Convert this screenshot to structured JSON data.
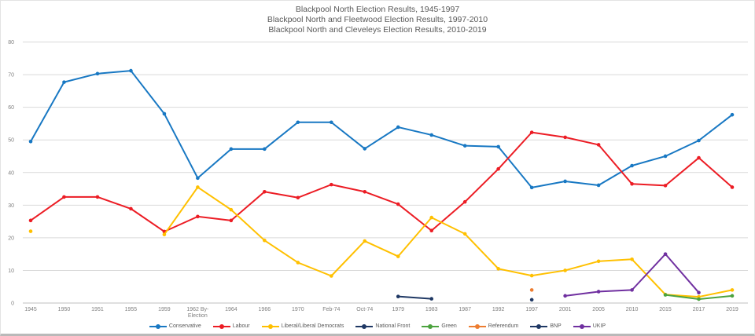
{
  "chart_data": {
    "type": "line",
    "title_lines": [
      "Blackpool North Election Results, 1945-1997",
      "Blackpool North and Fleetwood Election Results, 1997-2010",
      "Blackpool North and Cleveleys Election Results, 2010-2019"
    ],
    "xlabel": "",
    "ylabel": "",
    "ylim": [
      0,
      80
    ],
    "yticks": [
      0,
      10,
      20,
      30,
      40,
      50,
      60,
      70,
      80
    ],
    "grid": true,
    "legend_position": "bottom",
    "categories": [
      "1945",
      "1950",
      "1951",
      "1955",
      "1959",
      "1962 By-Election",
      "1964",
      "1966",
      "1970",
      "Feb-74",
      "Oct-74",
      "1979",
      "1983",
      "1987",
      "1992",
      "1997",
      "2001",
      "2005",
      "2010",
      "2015",
      "2017",
      "2019"
    ],
    "series": [
      {
        "name": "Conservative",
        "color": "#1878c3",
        "values": [
          49.5,
          67.7,
          70.3,
          71.2,
          58,
          38.3,
          47.2,
          47.2,
          55.4,
          55.4,
          47.3,
          53.9,
          51.5,
          48.2,
          47.9,
          35.4,
          37.3,
          36.1,
          42.1,
          45,
          49.8,
          57.7
        ]
      },
      {
        "name": "Labour",
        "color": "#ec1c24",
        "values": [
          25.3,
          32.5,
          32.5,
          28.9,
          21.9,
          26.5,
          25.3,
          34.1,
          32.3,
          36.3,
          34.1,
          30.3,
          22.2,
          31,
          41.1,
          52.3,
          50.8,
          48.5,
          36.5,
          36,
          44.5,
          35.5
        ]
      },
      {
        "name": "Liberal/Liberal Democrats",
        "color": "#ffc000",
        "values": [
          22,
          null,
          null,
          null,
          21,
          35.5,
          28.6,
          19.2,
          12.4,
          8.3,
          19,
          14.3,
          26.2,
          21.2,
          10.5,
          8.4,
          10,
          12.8,
          13.4,
          2.6,
          1.9,
          4
        ]
      },
      {
        "name": "National Front",
        "color": "#1f3864",
        "values": [
          null,
          null,
          null,
          null,
          null,
          null,
          null,
          null,
          null,
          null,
          null,
          2,
          1.3,
          null,
          null,
          null,
          null,
          null,
          null,
          null,
          null,
          null
        ]
      },
      {
        "name": "Green",
        "color": "#4ca33f",
        "values": [
          null,
          null,
          null,
          null,
          null,
          null,
          null,
          null,
          null,
          null,
          null,
          null,
          null,
          null,
          null,
          null,
          null,
          null,
          null,
          2.5,
          1.2,
          2.2
        ]
      },
      {
        "name": "Referendum",
        "color": "#ed7d31",
        "values": [
          null,
          null,
          null,
          null,
          null,
          null,
          null,
          null,
          null,
          null,
          null,
          null,
          null,
          null,
          null,
          4,
          null,
          null,
          null,
          null,
          null,
          null
        ]
      },
      {
        "name": "BNP",
        "color": "#1f3864",
        "values": [
          null,
          null,
          null,
          null,
          null,
          null,
          null,
          null,
          null,
          null,
          null,
          null,
          null,
          null,
          null,
          1,
          null,
          null,
          null,
          null,
          null,
          null
        ]
      },
      {
        "name": "UKIP",
        "color": "#7030a0",
        "values": [
          null,
          null,
          null,
          null,
          null,
          null,
          null,
          null,
          null,
          null,
          null,
          null,
          null,
          null,
          null,
          null,
          2.2,
          3.5,
          4,
          15,
          3.2,
          null
        ]
      }
    ]
  }
}
